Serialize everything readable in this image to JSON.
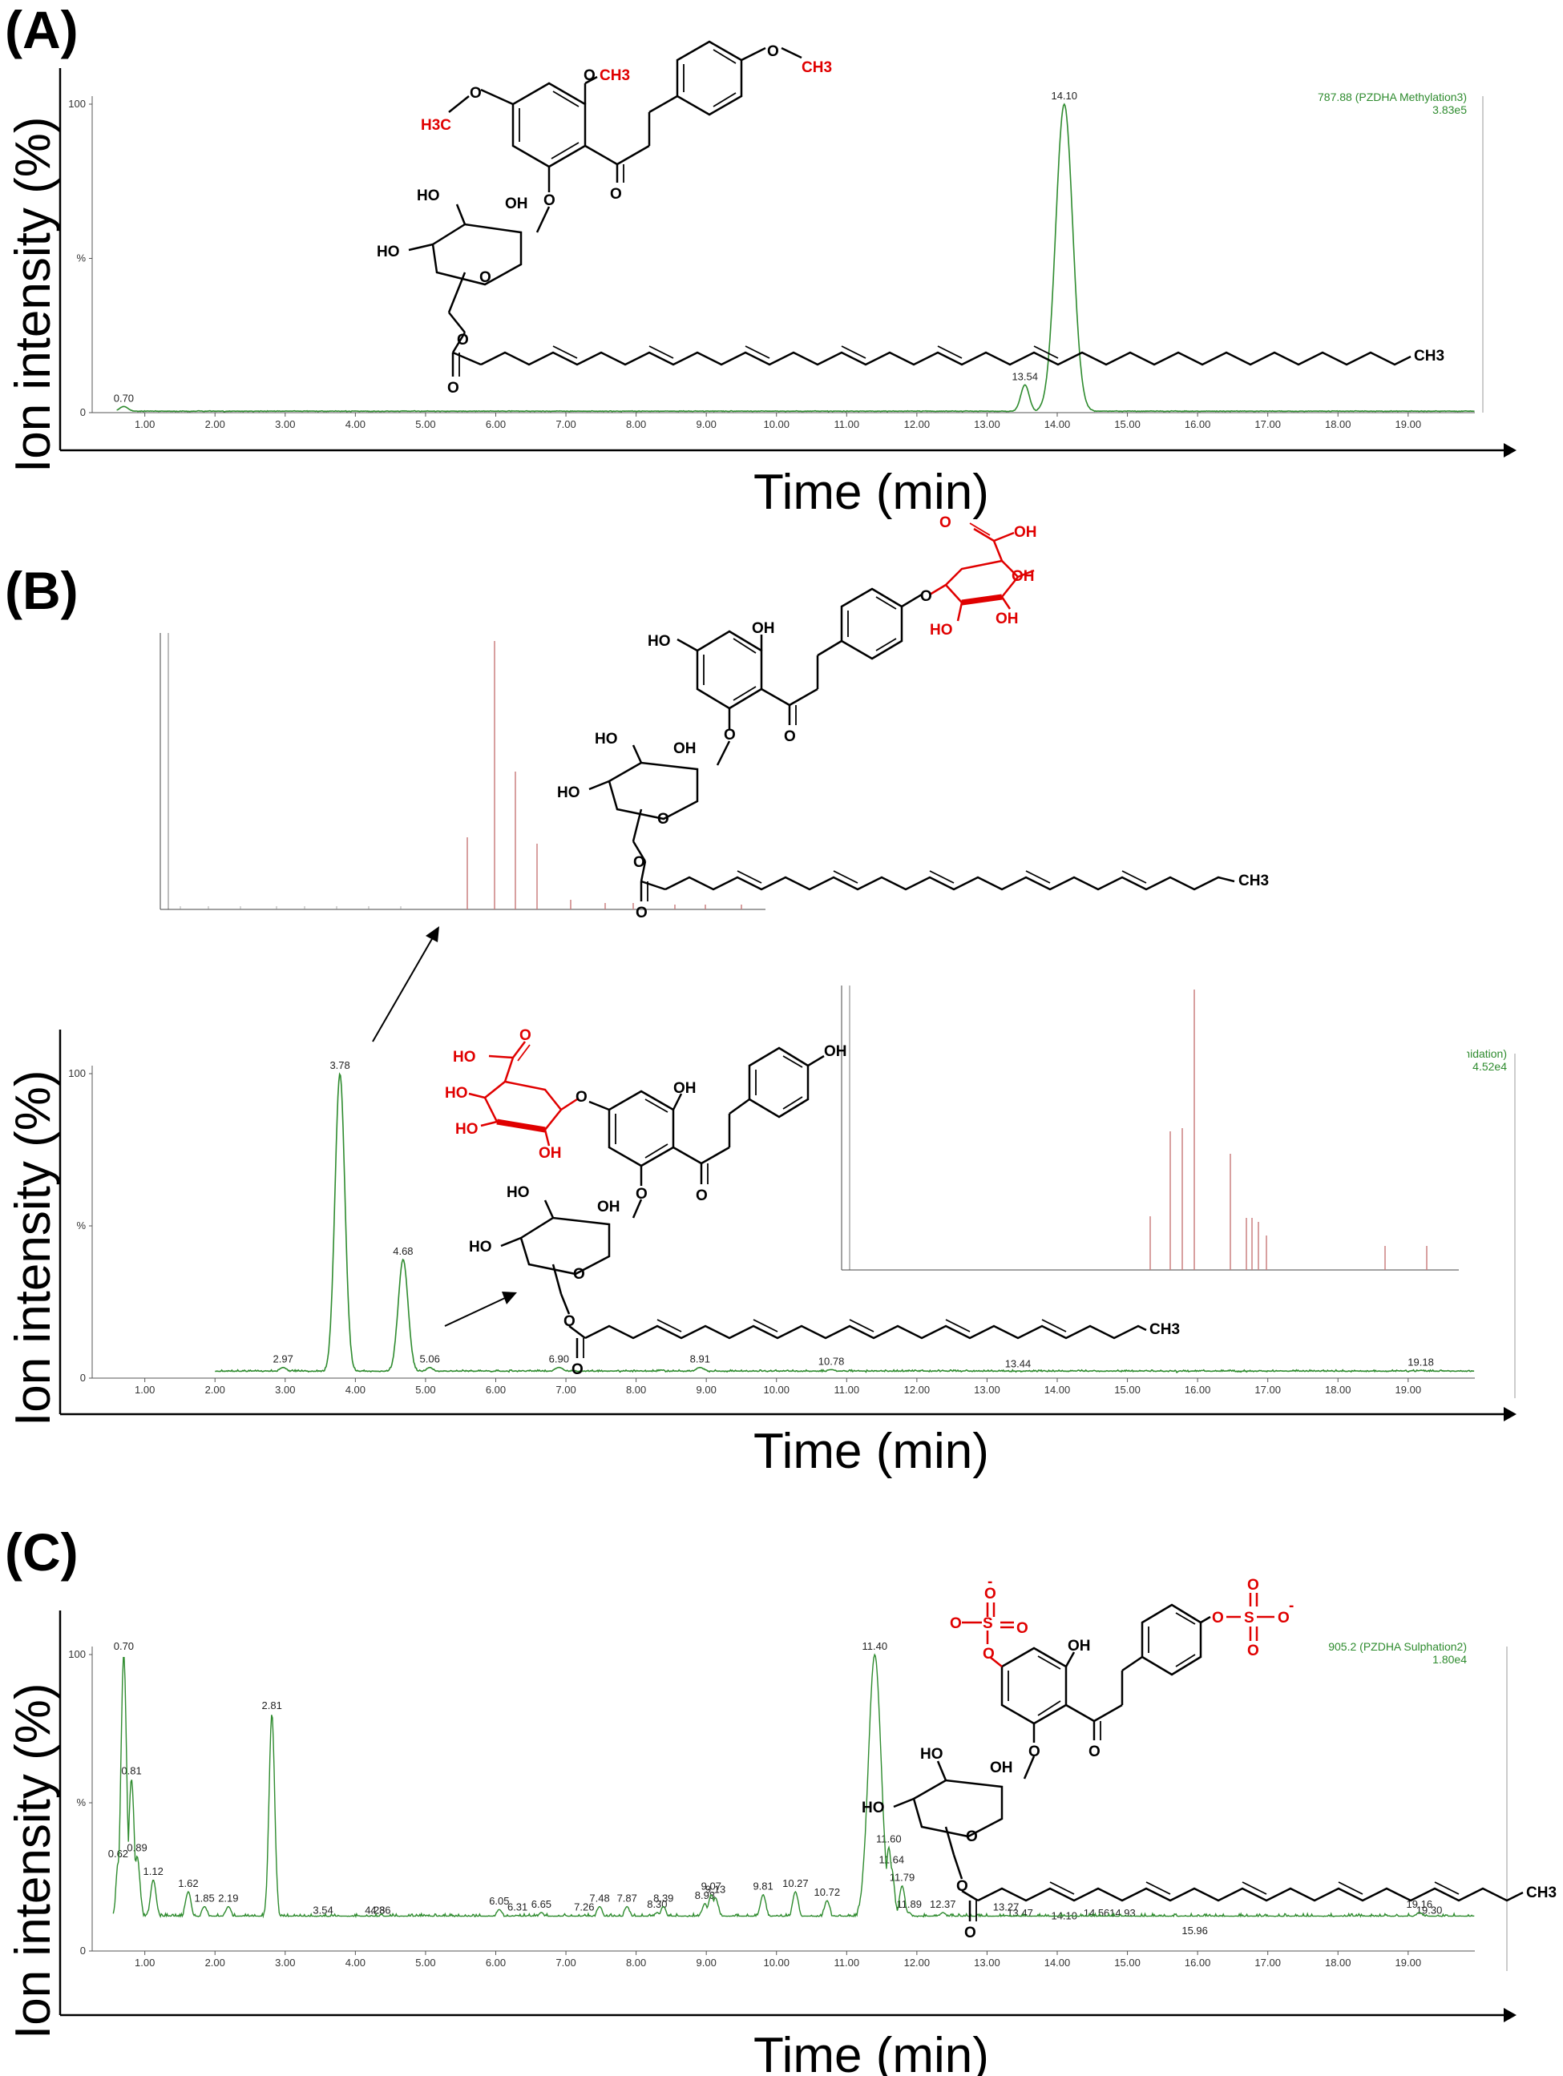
{
  "panels": [
    {
      "label": "(A)",
      "ylabel": "Ion intensity (%)",
      "xlabel": "Time (min)",
      "info": [
        "787.88 (PZDHA Methylation3)",
        "3.83e5"
      ]
    },
    {
      "label": "(B)",
      "ylabel": "Ion intensity (%)",
      "xlabel": "Time (min)",
      "info": [
        "ronidation)",
        "4.52e4"
      ]
    },
    {
      "label": "(C)",
      "ylabel": "Ion intensity (%)",
      "xlabel": "Time (min)",
      "info": [
        "905.2 (PZDHA Sulphation2)",
        "1.80e4"
      ]
    }
  ],
  "chem_labels": {
    "oh": "OH",
    "ho": "HO",
    "o": "O",
    "ch3": "CH3",
    "h3c": "H3C",
    "s": "S",
    "minus": "-"
  },
  "colors": {
    "trace": "#2e8b2e",
    "highlight": "#e00000",
    "ms_lines": "#c87878"
  },
  "chart_data": [
    {
      "type": "line",
      "panel": "A",
      "title": "",
      "xlabel": "Time (min)",
      "ylabel": "Ion intensity (%)",
      "xlim": [
        0.25,
        19.95
      ],
      "ylim": [
        0,
        100
      ],
      "x_ticks": [
        "1.00",
        "2.00",
        "3.00",
        "4.00",
        "5.00",
        "6.00",
        "7.00",
        "8.00",
        "9.00",
        "10.00",
        "11.00",
        "12.00",
        "13.00",
        "14.00",
        "15.00",
        "16.00",
        "17.00",
        "18.00",
        "19.00"
      ],
      "y_ticks": [
        "0",
        "%",
        "100"
      ],
      "baseline": {
        "start": 0.6,
        "end": 19.95,
        "level": 0.4,
        "noise": 0.2
      },
      "peaks": [
        {
          "rt": 0.7,
          "height": 2.0,
          "width": 0.06,
          "label": "0.70"
        },
        {
          "rt": 13.54,
          "height": 9.0,
          "width": 0.06,
          "label": "13.54"
        },
        {
          "rt": 14.1,
          "height": 100,
          "width": 0.12,
          "label": "14.10"
        }
      ]
    },
    {
      "type": "line",
      "panel": "B",
      "title": "",
      "xlabel": "Time (min)",
      "ylabel": "Ion intensity (%)",
      "xlim": [
        0.25,
        19.95
      ],
      "ylim": [
        0,
        100
      ],
      "x_ticks": [
        "1.00",
        "2.00",
        "3.00",
        "4.00",
        "5.00",
        "6.00",
        "7.00",
        "8.00",
        "9.00",
        "10.00",
        "11.00",
        "12.00",
        "13.00",
        "14.00",
        "15.00",
        "16.00",
        "17.00",
        "18.00",
        "19.00"
      ],
      "y_ticks": [
        "0",
        "%",
        "100"
      ],
      "baseline": {
        "start": 2.0,
        "end": 19.95,
        "level": 2.0,
        "noise": 0.7
      },
      "peaks": [
        {
          "rt": 2.97,
          "height": 3.5,
          "width": 0.05,
          "label": "2.97"
        },
        {
          "rt": 3.78,
          "height": 100,
          "width": 0.07,
          "label": "3.78"
        },
        {
          "rt": 4.68,
          "height": 39,
          "width": 0.07,
          "label": "4.68"
        },
        {
          "rt": 5.06,
          "height": 3.5,
          "width": 0.05,
          "label": "5.06"
        },
        {
          "rt": 6.9,
          "height": 3.5,
          "width": 0.06,
          "label": "6.90"
        },
        {
          "rt": 8.91,
          "height": 3.5,
          "width": 0.06,
          "label": "8.91"
        },
        {
          "rt": 10.78,
          "height": 2.8,
          "width": 0.06,
          "label": "10.78"
        },
        {
          "rt": 13.44,
          "height": 2.0,
          "width": 0.06,
          "label": "13.44"
        },
        {
          "rt": 19.18,
          "height": 2.5,
          "width": 0.06,
          "label": "19.18"
        }
      ]
    },
    {
      "type": "line",
      "panel": "C",
      "title": "",
      "xlabel": "Time (min)",
      "ylabel": "Ion intensity (%)",
      "xlim": [
        0.25,
        19.95
      ],
      "ylim": [
        0,
        100
      ],
      "x_ticks": [
        "1.00",
        "2.00",
        "3.00",
        "4.00",
        "5.00",
        "6.00",
        "7.00",
        "8.00",
        "9.00",
        "10.00",
        "11.00",
        "12.00",
        "13.00",
        "14.00",
        "15.00",
        "16.00",
        "17.00",
        "18.00",
        "19.00"
      ],
      "y_ticks": [
        "0",
        "%",
        "100"
      ],
      "baseline": {
        "start": 0.55,
        "end": 19.95,
        "level": 11,
        "noise": 1.6
      },
      "peaks": [
        {
          "rt": 0.62,
          "height": 30,
          "width": 0.03,
          "label": "0.62"
        },
        {
          "rt": 0.7,
          "height": 100,
          "width": 0.04,
          "label": "0.70"
        },
        {
          "rt": 0.81,
          "height": 58,
          "width": 0.04,
          "label": "0.81"
        },
        {
          "rt": 0.89,
          "height": 32,
          "width": 0.04,
          "label": "0.89"
        },
        {
          "rt": 1.12,
          "height": 24,
          "width": 0.04,
          "label": "1.12"
        },
        {
          "rt": 1.62,
          "height": 20,
          "width": 0.04,
          "label": "1.62"
        },
        {
          "rt": 1.85,
          "height": 15,
          "width": 0.04,
          "label": "1.85"
        },
        {
          "rt": 2.19,
          "height": 15,
          "width": 0.04,
          "label": "2.19"
        },
        {
          "rt": 2.81,
          "height": 80,
          "width": 0.04,
          "label": "2.81"
        },
        {
          "rt": 3.54,
          "height": 11,
          "width": 0.04,
          "label": "3.54"
        },
        {
          "rt": 4.28,
          "height": 11,
          "width": 0.04,
          "label": "4.28"
        },
        {
          "rt": 4.36,
          "height": 11,
          "width": 0.04,
          "label": "4.36"
        },
        {
          "rt": 6.05,
          "height": 14,
          "width": 0.04,
          "label": "6.05"
        },
        {
          "rt": 6.31,
          "height": 12,
          "width": 0.04,
          "label": "6.31"
        },
        {
          "rt": 6.65,
          "height": 13,
          "width": 0.04,
          "label": "6.65"
        },
        {
          "rt": 7.26,
          "height": 12,
          "width": 0.04,
          "label": "7.26"
        },
        {
          "rt": 7.48,
          "height": 15,
          "width": 0.04,
          "label": "7.48"
        },
        {
          "rt": 7.87,
          "height": 15,
          "width": 0.04,
          "label": "7.87"
        },
        {
          "rt": 8.3,
          "height": 13,
          "width": 0.04,
          "label": "8.30"
        },
        {
          "rt": 8.39,
          "height": 15,
          "width": 0.04,
          "label": "8.39"
        },
        {
          "rt": 8.98,
          "height": 16,
          "width": 0.04,
          "label": "8.98"
        },
        {
          "rt": 9.07,
          "height": 19,
          "width": 0.04,
          "label": "9.07"
        },
        {
          "rt": 9.13,
          "height": 18,
          "width": 0.04,
          "label": "9.13"
        },
        {
          "rt": 9.81,
          "height": 19,
          "width": 0.04,
          "label": "9.81"
        },
        {
          "rt": 10.27,
          "height": 20,
          "width": 0.04,
          "label": "10.27"
        },
        {
          "rt": 10.72,
          "height": 17,
          "width": 0.04,
          "label": "10.72"
        },
        {
          "rt": 11.4,
          "height": 100,
          "width": 0.09,
          "label": "11.40"
        },
        {
          "rt": 11.6,
          "height": 35,
          "width": 0.04,
          "label": "11.60"
        },
        {
          "rt": 11.64,
          "height": 28,
          "width": 0.04,
          "label": "11.64"
        },
        {
          "rt": 11.79,
          "height": 22,
          "width": 0.04,
          "label": "11.79"
        },
        {
          "rt": 11.89,
          "height": 13,
          "width": 0.04,
          "label": "11.89"
        },
        {
          "rt": 12.37,
          "height": 13,
          "width": 0.04,
          "label": "12.37"
        },
        {
          "rt": 13.27,
          "height": 12,
          "width": 0.04,
          "label": "13.27"
        },
        {
          "rt": 13.47,
          "height": 10,
          "width": 0.04,
          "label": "13.47"
        },
        {
          "rt": 14.1,
          "height": 9,
          "width": 0.04,
          "label": "14.10"
        },
        {
          "rt": 14.56,
          "height": 10,
          "width": 0.04,
          "label": "14.56"
        },
        {
          "rt": 14.93,
          "height": 10,
          "width": 0.04,
          "label": "14.93"
        },
        {
          "rt": 15.96,
          "height": 4,
          "width": 0.04,
          "label": "15.96"
        },
        {
          "rt": 19.16,
          "height": 13,
          "width": 0.05,
          "label": "19.16"
        },
        {
          "rt": 19.3,
          "height": 11,
          "width": 0.04,
          "label": "19.30"
        }
      ]
    }
  ]
}
